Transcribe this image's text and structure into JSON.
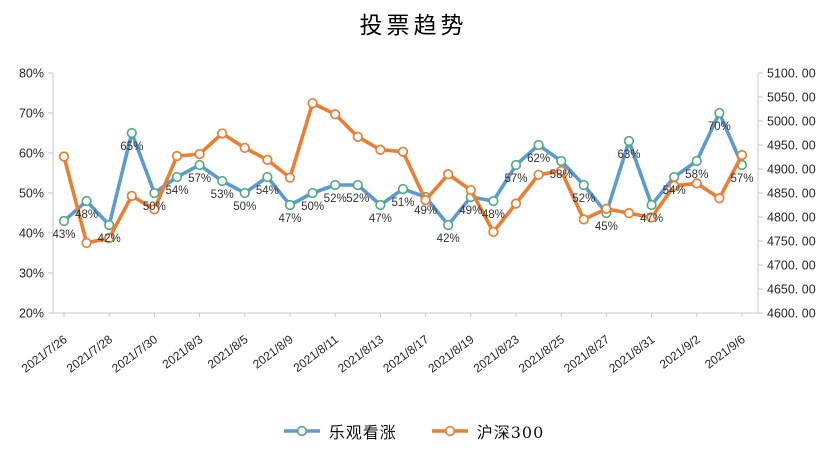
{
  "chart_data": {
    "type": "line",
    "title": "投票趋势",
    "n_points": 31,
    "x_tick_indices": [
      0,
      2,
      4,
      6,
      8,
      10,
      12,
      14,
      16,
      18,
      20,
      22,
      24,
      26,
      28,
      30
    ],
    "x_tick_labels": [
      "2021/7/26",
      "2021/7/28",
      "2021/7/30",
      "2021/8/3",
      "2021/8/5",
      "2021/8/9",
      "2021/8/11",
      "2021/8/13",
      "2021/8/17",
      "2021/8/19",
      "2021/8/23",
      "2021/8/25",
      "2021/8/27",
      "2021/8/31",
      "2021/9/2",
      "2021/9/6"
    ],
    "series": [
      {
        "name": "乐观看涨",
        "axis": "left",
        "line_color": "#5B9BD5",
        "marker_ring_color": "#55AD7E",
        "marker_fill": "#ffffff",
        "show_data_labels": true,
        "data_label_suffix": "%",
        "values": [
          43,
          48,
          42,
          65,
          50,
          54,
          57,
          53,
          50,
          54,
          47,
          50,
          52,
          52,
          47,
          51,
          49,
          42,
          49,
          48,
          57,
          62,
          58,
          52,
          45,
          63,
          47,
          54,
          58,
          70,
          57
        ]
      },
      {
        "name": "沪深300",
        "axis": "right",
        "line_color": "#ED7D31",
        "marker_ring_color": "#ED7D31",
        "marker_fill": "#ffffff",
        "show_data_labels": false,
        "data_label_suffix": "",
        "values": [
          4926,
          4746,
          4756,
          4844,
          4816,
          4927,
          4931,
          4974,
          4944,
          4919,
          4882,
          5037,
          5014,
          4967,
          4940,
          4936,
          4835,
          4889,
          4856,
          4769,
          4828,
          4888,
          4896,
          4795,
          4817,
          4808,
          4799,
          4865,
          4870,
          4839,
          4929
        ]
      }
    ],
    "left_axis": {
      "min": 20,
      "max": 80,
      "tick_labels_top_to_bottom": [
        "80%",
        "70%",
        "60%",
        "50%",
        "40%",
        "30%",
        "20%"
      ]
    },
    "right_axis": {
      "min": 4600,
      "max": 5100,
      "tick_labels_top_to_bottom": [
        "5100. 00",
        "5050. 00",
        "5000. 00",
        "4950. 00",
        "4900. 00",
        "4850. 00",
        "4800. 00",
        "4750. 00",
        "4700. 00",
        "4650. 00",
        "4600. 00"
      ]
    },
    "legend": {
      "position": "bottom",
      "items": [
        "乐观看涨",
        "沪深300"
      ]
    },
    "grid": false,
    "axis_line_color": "#C9C9C9",
    "text_color": "#262626"
  }
}
